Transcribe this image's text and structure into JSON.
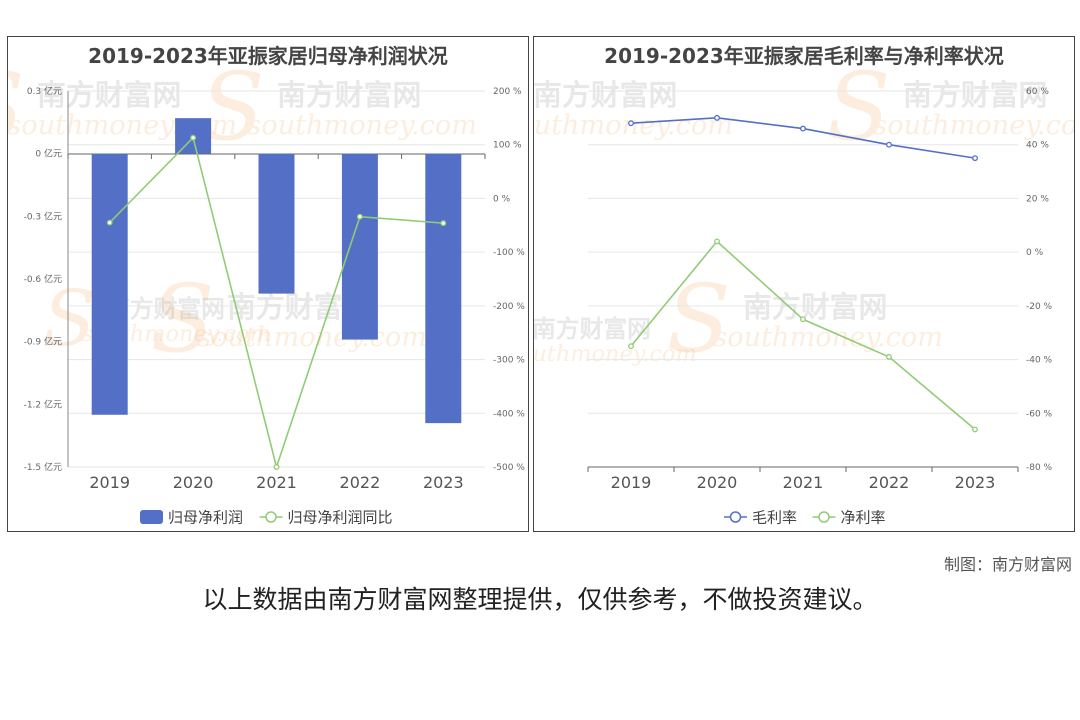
{
  "charts": {
    "left": {
      "title": "2019-2023年亚振家居归母净利润状况",
      "legend": [
        {
          "label": "归母净利润",
          "color": "#5470c6",
          "kind": "bar"
        },
        {
          "label": "归母净利润同比",
          "color": "#91cc75",
          "kind": "line"
        }
      ]
    },
    "right": {
      "title": "2019-2023年亚振家居毛利率与净利率状况",
      "legend": [
        {
          "label": "毛利率",
          "color": "#5470c6",
          "kind": "line"
        },
        {
          "label": "净利率",
          "color": "#91cc75",
          "kind": "line"
        }
      ]
    }
  },
  "chart_data": [
    {
      "type": "bar",
      "title": "2019-2023年亚振家居归母净利润状况",
      "categories": [
        "2019",
        "2020",
        "2021",
        "2022",
        "2023"
      ],
      "y_left": {
        "ticks": [
          "0.3 亿元",
          "0 亿元",
          "-0.3 亿元",
          "-0.6 亿元",
          "-0.9 亿元",
          "-1.2 亿元",
          "-1.5 亿元"
        ],
        "range": [
          -1.5,
          0.3
        ]
      },
      "y_right": {
        "ticks": [
          "200 %",
          "100 %",
          "0 %",
          "-100 %",
          "-200 %",
          "-300 %",
          "-400 %",
          "-500 %"
        ],
        "range": [
          -500,
          200
        ]
      },
      "series": [
        {
          "name": "归母净利润",
          "type": "bar",
          "axis": "left",
          "color": "#5470c6",
          "values": [
            -1.25,
            0.17,
            -0.67,
            -0.89,
            -1.29
          ]
        },
        {
          "name": "归母净利润同比",
          "type": "line",
          "axis": "right",
          "color": "#91cc75",
          "values": [
            -45,
            113,
            -500,
            -34,
            -46
          ]
        }
      ],
      "grid": true,
      "legend_position": "bottom"
    },
    {
      "type": "line",
      "title": "2019-2023年亚振家居毛利率与净利率状况",
      "categories": [
        "2019",
        "2020",
        "2021",
        "2022",
        "2023"
      ],
      "y_right": {
        "ticks": [
          "60 %",
          "40 %",
          "20 %",
          "0 %",
          "-20 %",
          "-40 %",
          "-60 %",
          "-80 %"
        ],
        "range": [
          -80,
          60
        ]
      },
      "series": [
        {
          "name": "毛利率",
          "type": "line",
          "axis": "right",
          "color": "#5470c6",
          "values": [
            48,
            50,
            46,
            40,
            35
          ]
        },
        {
          "name": "净利率",
          "type": "line",
          "axis": "right",
          "color": "#91cc75",
          "values": [
            -35,
            4,
            -25,
            -39,
            -66
          ]
        }
      ],
      "grid": true,
      "legend_position": "bottom"
    }
  ],
  "watermark": {
    "cn": "南方财富网",
    "en": "southmoney.com"
  },
  "credit": "制图：南方财富网",
  "disclaimer": "以上数据由南方财富网整理提供，仅供参考，不做投资建议。"
}
